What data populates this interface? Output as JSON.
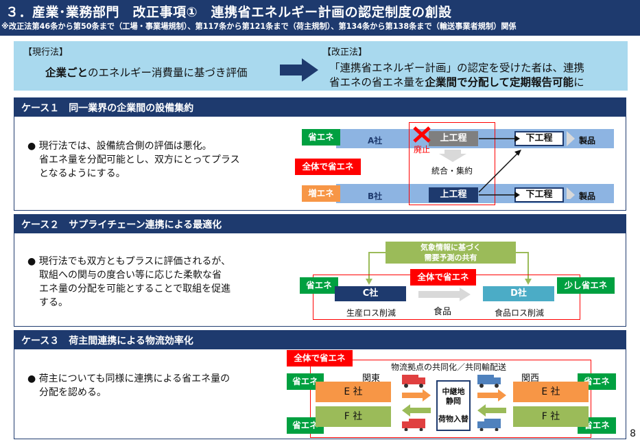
{
  "header": {
    "title": "３．産業･業務部門　改正事項①　連携省エネルギー計画の認定制度の創設",
    "subtitle": "※改正法第46条から第50条まで（工場・事業場規制）、第117条から第121条まで（荷主規制）、第134条から第138条まで（輸送事業者規制）関係"
  },
  "comparison": {
    "current_label": "【現行法】",
    "current_bold": "企業ごと",
    "current_text": "のエネルギー消費量に基づき評価",
    "revised_label": "【改正法】",
    "revised_line1": "「連携省エネルギー計画」の認定を受けた者は、連携",
    "revised_line2_a": "省エネの省エネ量を",
    "revised_line2_bold": "企業間で分配して定期報告可能",
    "revised_line2_b": "に"
  },
  "case1": {
    "title": "ケース１　同一業界の企業間の設備集約",
    "bullet_line1": "現行法では、設備統合側の評価は悪化。",
    "bullet_line2": "省エネ量を分配可能とし、双方にとってプラス",
    "bullet_line3": "となるようにする。",
    "tag_saving": "省エネ",
    "tag_total": "全体で省エネ",
    "tag_increase": "増エネ",
    "company_a": "A社",
    "company_b": "B社",
    "upstream": "上工程",
    "downstream": "下工程",
    "product": "製品",
    "abolished": "廃止",
    "integration": "統合・集約"
  },
  "case2": {
    "title": "ケース２　サプライチェーン連携による最適化",
    "bullet_line1": "現行法でも双方ともプラスに評価されるが、",
    "bullet_line2": "取組への関与の度合い等に応じた柔軟な省",
    "bullet_line3": "エネ量の分配を可能とすることで取組を促進",
    "bullet_line4": "する。",
    "weather_line1": "気象情報に基づく",
    "weather_line2": "需要予測の共有",
    "tag_saving": "省エネ",
    "tag_total": "全体で省エネ",
    "tag_small": "少し省エネ",
    "company_c": "C社",
    "company_d": "D社",
    "food": "食品",
    "c_caption": "生産ロス削減",
    "d_caption": "食品ロス削減"
  },
  "case3": {
    "title": "ケース３　荷主間連携による物流効率化",
    "bullet_line1": "荷主についても同様に連携による省エネ量の",
    "bullet_line2": "分配を認める。",
    "tag_total": "全体で省エネ",
    "shared": "物流拠点の共同化／共同輸配送",
    "kanto": "関東",
    "kansai": "関西",
    "tag_saving": "省エネ",
    "company_e": "E 社",
    "company_f": "F 社",
    "hub_line1": "中継地",
    "hub_line2": "静岡",
    "hub_line3": "荷物入替"
  },
  "page_number": "8"
}
